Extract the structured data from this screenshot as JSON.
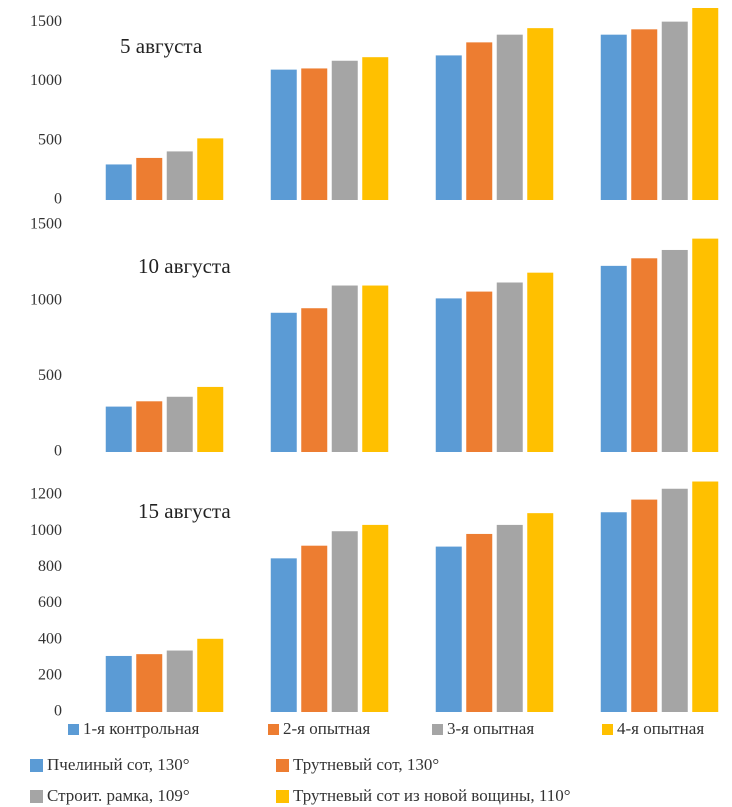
{
  "chart_data": [
    {
      "type": "bar",
      "title": "5 августа",
      "categories": [
        null,
        null,
        null,
        null
      ],
      "series": [
        {
          "name": "1-я контрольная",
          "color": "#5b9bd5",
          "values": [
            300,
            1100,
            1220,
            1395
          ]
        },
        {
          "name": "2-я опытная",
          "color": "#ed7d31",
          "values": [
            355,
            1110,
            1330,
            1440
          ]
        },
        {
          "name": "3-я опытная",
          "color": "#a5a5a5",
          "values": [
            410,
            1175,
            1395,
            1505
          ]
        },
        {
          "name": "4-я опытная",
          "color": "#ffc000",
          "values": [
            520,
            1205,
            1450,
            1620
          ]
        }
      ],
      "ylim": [
        0,
        1620
      ],
      "yticks": [
        0,
        500,
        1000,
        1500
      ]
    },
    {
      "type": "bar",
      "title": "10 августа",
      "categories": [
        null,
        null,
        null,
        null
      ],
      "series": [
        {
          "values": [
            300,
            920,
            1015,
            1230
          ]
        },
        {
          "values": [
            335,
            950,
            1060,
            1280
          ]
        },
        {
          "values": [
            365,
            1100,
            1120,
            1335
          ]
        },
        {
          "values": [
            430,
            1100,
            1185,
            1410
          ]
        }
      ],
      "ylim": [
        0,
        1500
      ],
      "yticks": [
        0,
        500,
        1000,
        1500
      ]
    },
    {
      "type": "bar",
      "title": "15 августа",
      "categories": [
        null,
        null,
        null,
        null
      ],
      "series": [
        {
          "values": [
            310,
            850,
            915,
            1105
          ]
        },
        {
          "values": [
            320,
            920,
            985,
            1175
          ]
        },
        {
          "values": [
            340,
            1000,
            1035,
            1235
          ]
        },
        {
          "values": [
            405,
            1035,
            1100,
            1275
          ]
        }
      ],
      "ylim": [
        0,
        1300
      ],
      "yticks": [
        0,
        200,
        400,
        600,
        800,
        1000,
        1200
      ]
    }
  ],
  "notes": [
    {
      "label": "Пчелиный сот, 130°",
      "color": "#5b9bd5"
    },
    {
      "label": "Трутневый сот, 130°",
      "color": "#ed7d31"
    },
    {
      "label": "Строит. рамка, 109°",
      "color": "#a5a5a5"
    },
    {
      "label": "Трутневый сот из новой вощины, 110°",
      "color": "#ffc000"
    }
  ]
}
